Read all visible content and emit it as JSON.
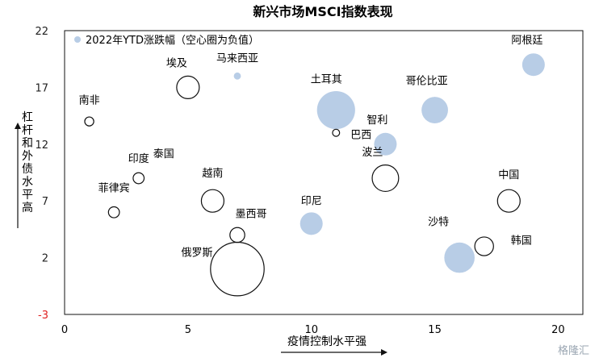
{
  "chart_data": {
    "type": "scatter",
    "title": "新兴市场MSCI指数表现",
    "xlabel": "疫情控制水平强",
    "ylabel": "杠杆和外债水平高",
    "xlim": [
      0,
      21
    ],
    "ylim": [
      -3,
      22
    ],
    "x_ticks": [
      0,
      5,
      10,
      15,
      20
    ],
    "y_ticks": [
      -3,
      2,
      7,
      12,
      17,
      22
    ],
    "grid": false,
    "legend": {
      "label": "2022年YTD涨跌幅（空心圈为负值）",
      "position": "top-left"
    },
    "colors": {
      "positive_fill": "#b8cde6",
      "negative_stroke": "#111111",
      "neg_tick": "#e02020"
    },
    "points": [
      {
        "name": "阿根廷",
        "x": 19,
        "y": 19,
        "size": 5,
        "sign": "positive"
      },
      {
        "name": "哥伦比亚",
        "x": 15,
        "y": 15,
        "size": 6,
        "sign": "positive"
      },
      {
        "name": "土耳其",
        "x": 11,
        "y": 15,
        "size": 9,
        "sign": "positive"
      },
      {
        "name": "智利",
        "x": 13,
        "y": 12,
        "size": 5,
        "sign": "positive"
      },
      {
        "name": "印尼",
        "x": 10,
        "y": 5,
        "size": 5,
        "sign": "positive"
      },
      {
        "name": "沙特",
        "x": 16,
        "y": 2,
        "size": 7,
        "sign": "positive"
      },
      {
        "name": "马来西亚",
        "x": 7,
        "y": 18,
        "size": 1,
        "sign": "positive"
      },
      {
        "name": "埃及",
        "x": 5,
        "y": 17,
        "size": 5,
        "sign": "negative"
      },
      {
        "name": "南非",
        "x": 1,
        "y": 14,
        "size": 1.5,
        "sign": "negative"
      },
      {
        "name": "泰国",
        "x": 3,
        "y": 9,
        "size": 2,
        "sign": "negative"
      },
      {
        "name": "印度",
        "x": 3,
        "y": 9,
        "size": 0,
        "sign": "negative"
      },
      {
        "name": "菲律宾",
        "x": 2,
        "y": 6,
        "size": 2,
        "sign": "negative"
      },
      {
        "name": "越南",
        "x": 6,
        "y": 7,
        "size": 5,
        "sign": "negative"
      },
      {
        "name": "墨西哥",
        "x": 7,
        "y": 4,
        "size": 3,
        "sign": "negative"
      },
      {
        "name": "俄罗斯",
        "x": 7,
        "y": 1,
        "size": 13,
        "sign": "negative"
      },
      {
        "name": "巴西",
        "x": 11,
        "y": 13,
        "size": 1,
        "sign": "negative"
      },
      {
        "name": "波兰",
        "x": 13,
        "y": 9,
        "size": 6,
        "sign": "negative"
      },
      {
        "name": "中国",
        "x": 18,
        "y": 7,
        "size": 5,
        "sign": "negative"
      },
      {
        "name": "韩国",
        "x": 17,
        "y": 3,
        "size": 4,
        "sign": "negative"
      }
    ]
  },
  "watermark": "格隆汇"
}
